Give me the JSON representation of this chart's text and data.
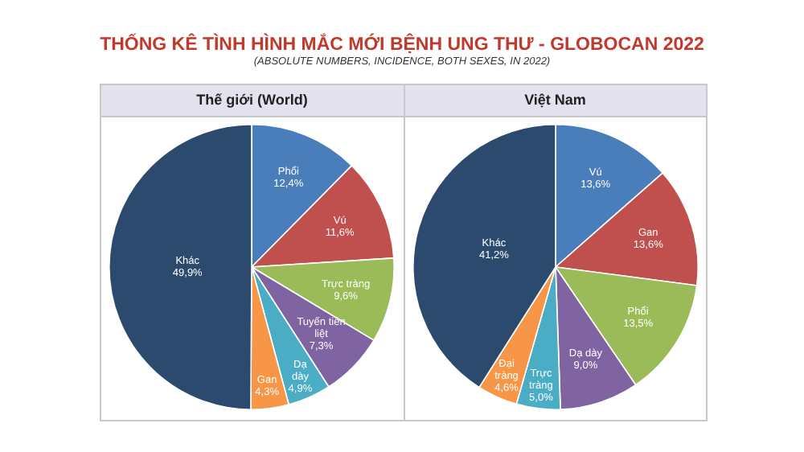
{
  "chart_data": [
    {
      "type": "pie",
      "title": "Thế giới (World)",
      "annotations": [
        "THỐNG KÊ TÌNH HÌNH MẮC MỚI BỆNH UNG THƯ - GLOBOCAN 2022",
        "(ABSOLUTE NUMBERS, INCIDENCE, BOTH SEXES, IN 2022)"
      ],
      "categories": [
        "Phổi",
        "Vú",
        "Trực tràng",
        "Tuyến tiền liệt",
        "Dạ dày",
        "Gan",
        "Khác"
      ],
      "values": [
        12.4,
        11.6,
        9.6,
        7.3,
        4.9,
        4.3,
        49.9
      ],
      "value_labels": [
        "12,4%",
        "11,6%",
        "9,6%",
        "7,3%",
        "4,9%",
        "4,3%",
        "49,9%"
      ],
      "colors": [
        "#4a7ebb",
        "#c0504d",
        "#9bbb59",
        "#8064a2",
        "#4bacc6",
        "#f79646",
        "#2c4a6e"
      ]
    },
    {
      "type": "pie",
      "title": "Việt Nam",
      "categories": [
        "Vú",
        "Gan",
        "Phổi",
        "Dạ dày",
        "Trực tràng",
        "Đại tràng",
        "Khác"
      ],
      "values": [
        13.6,
        13.6,
        13.5,
        9.0,
        5.0,
        4.6,
        41.2
      ],
      "value_labels": [
        "13,6%",
        "13,6%",
        "13,5%",
        "9,0%",
        "5,0%",
        "4,6%",
        "41,2%"
      ],
      "colors": [
        "#4a7ebb",
        "#c0504d",
        "#9bbb59",
        "#8064a2",
        "#4bacc6",
        "#f79646",
        "#2c4a6e"
      ]
    }
  ]
}
